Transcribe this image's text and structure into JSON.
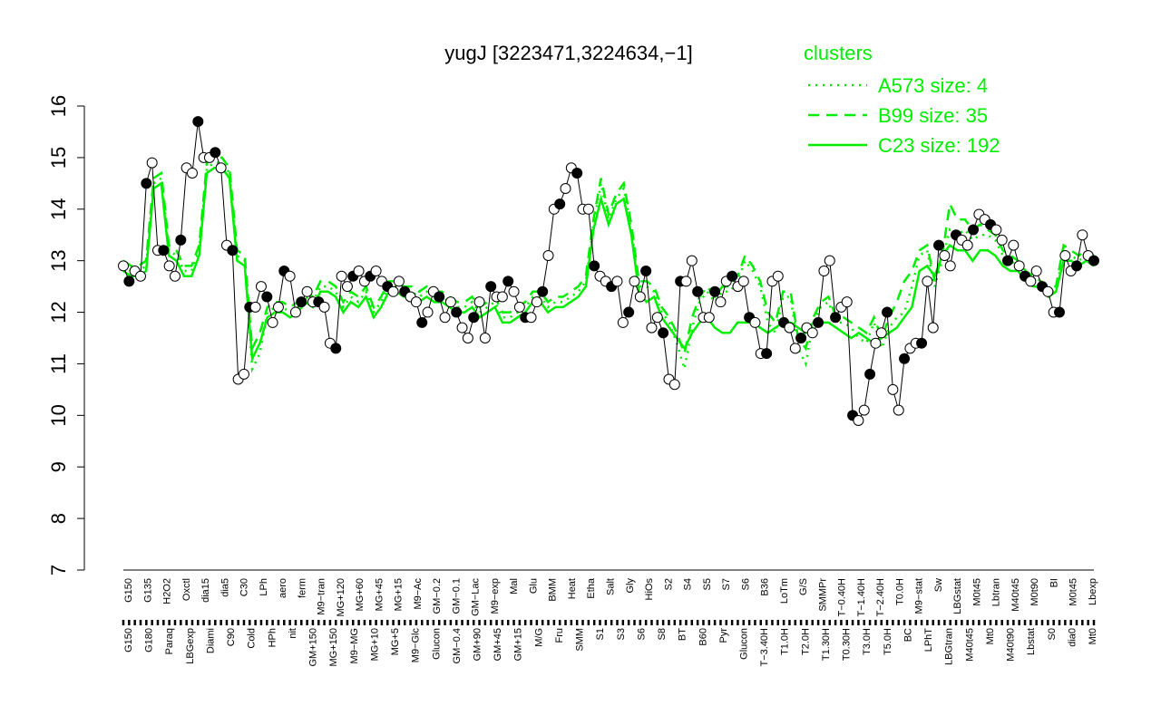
{
  "chart_data": {
    "type": "line",
    "title": "yugJ [3223471,3224634,−1]",
    "xlabel": "",
    "ylabel": "",
    "ylim": [
      7,
      16
    ],
    "yticks": [
      "7",
      "8",
      "9",
      "10",
      "11",
      "12",
      "13",
      "14",
      "15",
      "16"
    ],
    "xtick_labels_top": [
      "G150",
      "G135",
      "H2O2",
      "Oxctl",
      "dia15",
      "dia5",
      "C30",
      "LPh",
      "aero",
      "ferm",
      "M9−tran",
      "MG+120",
      "MG+60",
      "MG+45",
      "MG+15",
      "M9−Ac",
      "GM−0.2",
      "GM−0.1",
      "GM−Lac",
      "M9−exp",
      "Mal",
      "Glu",
      "BMM",
      "Heat",
      "Etha",
      "Salt",
      "Gly",
      "HiOs",
      "S2",
      "S4",
      "S5",
      "S7",
      "S6",
      "B36",
      "LoTm",
      "G/S",
      "SMMPr",
      "T−0.40H",
      "T−1.40H",
      "T−2.40H",
      "T0.0H",
      "M9−stat",
      "Sw",
      "LBGstat",
      "M0t45",
      "Lbtran",
      "M40t45",
      "M0t90",
      "BI",
      "M0t45",
      "Lbexp"
    ],
    "xtick_labels_bottom": [
      "G150",
      "G180",
      "Paraq",
      "LBGexp",
      "Diami",
      "C90",
      "Cold",
      "HPh",
      "nit",
      "GM+150",
      "MG+150",
      "M9−MG",
      "MG+10",
      "MG+5",
      "M9−Glc",
      "Glucon",
      "GM−0.4",
      "GM+90",
      "GM+45",
      "GM+15",
      "M/G",
      "Fru",
      "SMM",
      "S1",
      "S3",
      "S6",
      "S8",
      "BT",
      "B60",
      "Pyr",
      "Glucon",
      "T−3.40H",
      "T1.0H",
      "T2.0H",
      "T1.30H",
      "T0.30H",
      "T3.0H",
      "T5.0H",
      "BC",
      "LPhT",
      "LBGtran",
      "M40t45",
      "Mt0",
      "M40t90",
      "Lbstat",
      "S0",
      "dia0",
      "Mt0"
    ],
    "series": [
      {
        "name": "A573 size: 4",
        "style": "dotted",
        "values": [
          12.9,
          12.8,
          12.8,
          12.9,
          14.5,
          14.6,
          13.2,
          13.1,
          12.8,
          12.8,
          13.2,
          14.8,
          14.9,
          14.9,
          14.7,
          13.1,
          13.0,
          10.9,
          11.2,
          12.0,
          12.1,
          12.1,
          12.0,
          12.1,
          12.3,
          12.2,
          12.5,
          12.5,
          12.4,
          12.1,
          12.3,
          12.2,
          12.4,
          12.0,
          12.2,
          12.5,
          12.5,
          12.4,
          12.4,
          12.3,
          12.4,
          12.3,
          12.3,
          12.2,
          12.1,
          12.1,
          12.2,
          12.0,
          12.1,
          12.2,
          11.9,
          11.9,
          12.0,
          12.1,
          12.3,
          12.3,
          12.1,
          12.2,
          12.2,
          12.3,
          12.4,
          12.6,
          13.7,
          14.5,
          13.8,
          14.2,
          14.4,
          13.6,
          12.5,
          12.5,
          12.4,
          12.0,
          11.8,
          11.4,
          10.9,
          11.7,
          12.2,
          12.4,
          12.2,
          12.4,
          12.4,
          12.6,
          13.0,
          12.8,
          12.5,
          11.8,
          11.6,
          12.3,
          12.3,
          11.3,
          11.0,
          11.8,
          12.1,
          12.2,
          11.8,
          11.8,
          11.7,
          11.5,
          11.4,
          11.8,
          11.3,
          11.7,
          11.9,
          12.0,
          12.5,
          13.1,
          13.2,
          12.5,
          13.0,
          13.6,
          13.5,
          13.6,
          13.4,
          13.5,
          13.5,
          13.4,
          13.1,
          13.0,
          12.9,
          12.7,
          12.6,
          12.5,
          12.4,
          12.4,
          13.2,
          13.1,
          13.0,
          13.1,
          13.0
        ]
      },
      {
        "name": "B99 size: 35",
        "style": "dashed",
        "values": [
          13.0,
          12.9,
          12.9,
          13.0,
          14.6,
          14.7,
          13.3,
          13.2,
          12.9,
          12.9,
          13.3,
          14.9,
          15.0,
          15.0,
          14.8,
          13.2,
          13.1,
          11.3,
          11.6,
          12.1,
          12.2,
          12.2,
          12.1,
          12.2,
          12.4,
          12.3,
          12.6,
          12.6,
          12.5,
          12.2,
          12.4,
          12.3,
          12.5,
          12.1,
          12.3,
          12.6,
          12.6,
          12.5,
          12.5,
          12.4,
          12.5,
          12.4,
          12.4,
          12.3,
          12.2,
          12.2,
          12.3,
          12.1,
          12.2,
          12.3,
          12.0,
          12.0,
          12.1,
          12.2,
          12.4,
          12.4,
          12.2,
          12.3,
          12.3,
          12.4,
          12.5,
          12.7,
          13.8,
          14.6,
          13.9,
          14.3,
          14.5,
          13.7,
          12.6,
          12.6,
          12.5,
          12.1,
          11.9,
          11.6,
          11.2,
          11.9,
          12.3,
          12.5,
          12.3,
          12.5,
          12.5,
          12.7,
          13.1,
          12.9,
          12.6,
          12.0,
          11.8,
          12.4,
          12.4,
          11.5,
          11.3,
          11.9,
          12.2,
          12.3,
          11.9,
          11.9,
          11.8,
          11.7,
          11.6,
          11.9,
          11.5,
          11.9,
          12.2,
          12.6,
          12.8,
          13.2,
          13.3,
          12.6,
          13.1,
          14.1,
          13.8,
          13.8,
          13.6,
          13.7,
          13.6,
          13.5,
          13.2,
          13.1,
          13.0,
          12.8,
          12.7,
          12.6,
          12.5,
          12.5,
          13.3,
          13.2,
          13.1,
          13.2,
          13.1
        ]
      },
      {
        "name": "C23 size: 192",
        "style": "solid",
        "values": [
          12.8,
          12.7,
          12.7,
          12.8,
          14.4,
          14.5,
          13.1,
          13.0,
          12.7,
          12.7,
          13.1,
          14.7,
          14.8,
          14.8,
          14.6,
          13.0,
          12.9,
          11.1,
          11.4,
          11.9,
          12.0,
          12.0,
          11.9,
          12.0,
          12.2,
          12.1,
          12.4,
          12.4,
          12.3,
          12.0,
          12.2,
          12.1,
          12.3,
          11.9,
          12.1,
          12.4,
          12.4,
          12.3,
          12.3,
          12.2,
          12.3,
          12.2,
          12.2,
          12.1,
          12.0,
          12.0,
          12.1,
          11.9,
          12.0,
          12.1,
          11.8,
          11.8,
          11.9,
          12.0,
          12.2,
          12.2,
          12.0,
          12.1,
          12.1,
          12.2,
          12.3,
          12.5,
          13.6,
          14.2,
          13.7,
          14.1,
          14.2,
          13.5,
          12.4,
          12.2,
          12.3,
          11.9,
          11.7,
          11.5,
          11.3,
          11.6,
          11.8,
          11.9,
          11.7,
          11.6,
          11.6,
          11.8,
          11.8,
          11.8,
          11.7,
          11.6,
          11.7,
          11.8,
          11.8,
          11.7,
          11.6,
          11.8,
          11.8,
          11.8,
          11.7,
          11.6,
          11.5,
          11.6,
          11.5,
          11.4,
          11.5,
          11.6,
          11.7,
          11.9,
          12.1,
          12.8,
          12.9,
          12.7,
          13.1,
          13.3,
          13.2,
          13.2,
          13.0,
          13.2,
          13.2,
          13.1,
          12.9,
          12.8,
          12.8,
          12.6,
          12.5,
          12.5,
          12.3,
          12.4,
          13.0,
          13.0,
          12.9,
          13.0,
          12.9
        ]
      },
      {
        "name": "",
        "style": "points",
        "values": [
          12.9,
          12.6,
          12.8,
          12.7,
          14.5,
          14.9,
          13.2,
          13.2,
          12.9,
          12.7,
          13.4,
          14.8,
          14.7,
          15.7,
          15.0,
          15.0,
          15.1,
          14.8,
          13.3,
          13.2,
          10.7,
          10.8,
          12.1,
          12.1,
          12.5,
          12.3,
          11.8,
          12.1,
          12.8,
          12.7,
          12.0,
          12.2,
          12.4,
          12.2,
          12.2,
          12.1,
          11.4,
          11.3,
          12.7,
          12.5,
          12.7,
          12.8,
          12.6,
          12.7,
          12.8,
          12.6,
          12.5,
          12.4,
          12.6,
          12.4,
          12.3,
          12.2,
          11.8,
          12.0,
          12.4,
          12.3,
          11.9,
          12.2,
          12.0,
          11.7,
          11.5,
          11.9,
          12.2,
          11.5,
          12.5,
          12.3,
          12.3,
          12.6,
          12.4,
          12.1,
          11.9,
          11.9,
          12.2,
          12.4,
          13.1,
          14.0,
          14.1,
          14.4,
          14.8,
          14.7,
          14.0,
          14.0,
          12.9,
          12.7,
          12.6,
          12.5,
          12.6,
          11.8,
          12.0,
          12.6,
          12.3,
          12.8,
          11.7,
          11.9,
          11.6,
          10.7,
          10.6,
          12.6,
          12.6,
          13.0,
          12.4,
          11.9,
          11.9,
          12.4,
          12.2,
          12.6,
          12.7,
          12.5,
          12.6,
          11.9,
          11.8,
          11.2,
          11.2,
          12.6,
          12.7,
          11.8,
          11.7,
          11.3,
          11.5,
          11.7,
          11.6,
          11.8,
          12.8,
          13.0,
          11.9,
          12.1,
          12.2,
          10.0,
          9.9,
          10.1,
          10.8,
          11.4,
          11.6,
          12.0,
          10.5,
          10.1,
          11.1,
          11.3,
          11.4,
          11.4,
          12.6,
          11.7,
          13.3,
          13.1,
          12.9,
          13.5,
          13.4,
          13.3,
          13.6,
          13.9,
          13.8,
          13.7,
          13.6,
          13.4,
          13.0,
          13.3,
          12.9,
          12.7,
          12.6,
          12.8,
          12.5,
          12.4,
          12.0,
          12.0,
          13.1,
          12.8,
          12.9,
          13.5,
          13.1,
          13.0
        ]
      }
    ],
    "legend": {
      "title": "clusters",
      "placement": "top-right",
      "entries": [
        {
          "label": "A573 size: 4",
          "style": "dotted"
        },
        {
          "label": "B99 size: 35",
          "style": "dashed"
        },
        {
          "label": "C23 size: 192",
          "style": "solid"
        }
      ]
    },
    "grid": false,
    "colors": {
      "series": "#00ee00",
      "points_fill": "#ffffff",
      "points_fill_alt": "#000000",
      "points_stroke": "#000000",
      "legend_text": "#00ee00",
      "axis": "#000000"
    }
  }
}
